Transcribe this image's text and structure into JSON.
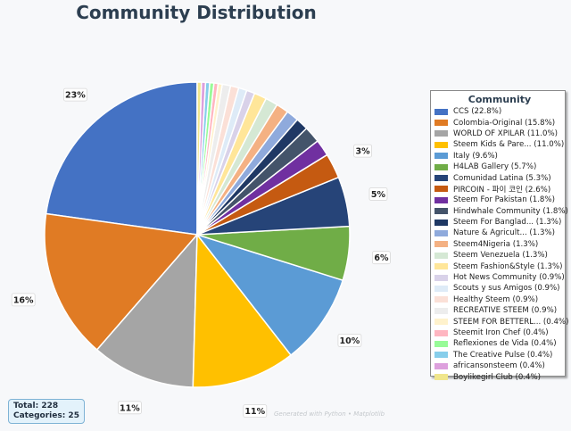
{
  "chart_data": {
    "type": "pie",
    "title": "Community Distribution",
    "legend_title": "Community",
    "legend_position": "right",
    "total_label": "Total: 228",
    "categories_label": "Categories: 25",
    "footer": "Generated with Python • Matplotlib",
    "slices": [
      {
        "label": "CCS (22.8%)",
        "value": 52,
        "pct_label": "23%",
        "color": "#4472c4"
      },
      {
        "label": "Colombia-Original (15.8%)",
        "value": 36,
        "pct_label": "16%",
        "color": "#e07b24"
      },
      {
        "label": "WORLD OF XPILAR (11.0%)",
        "value": 25,
        "pct_label": "11%",
        "color": "#a5a5a5"
      },
      {
        "label": "Steem Kids & Pare... (11.0%)",
        "value": 25,
        "pct_label": "11%",
        "color": "#ffc000"
      },
      {
        "label": "Italy (9.6%)",
        "value": 22,
        "pct_label": "10%",
        "color": "#5b9bd5"
      },
      {
        "label": "H4LAB Gallery (5.7%)",
        "value": 13,
        "pct_label": "6%",
        "color": "#70ad47"
      },
      {
        "label": "Comunidad Latina (5.3%)",
        "value": 12,
        "pct_label": "5%",
        "color": "#264478"
      },
      {
        "label": "PIRCOIN - 파이 코인 (2.6%)",
        "value": 6,
        "pct_label": "3%",
        "color": "#c55a11"
      },
      {
        "label": "Steem For Pakistan (1.8%)",
        "value": 4,
        "pct_label": "",
        "color": "#7030a0"
      },
      {
        "label": "Hindwhale Community (1.8%)",
        "value": 4,
        "pct_label": "",
        "color": "#44546a"
      },
      {
        "label": "Steem For Banglad... (1.3%)",
        "value": 3,
        "pct_label": "",
        "color": "#1f3864"
      },
      {
        "label": "Nature & Agricult... (1.3%)",
        "value": 3,
        "pct_label": "",
        "color": "#8faadc"
      },
      {
        "label": "Steem4Nigeria (1.3%)",
        "value": 3,
        "pct_label": "",
        "color": "#f4b183"
      },
      {
        "label": "Steem Venezuela (1.3%)",
        "value": 3,
        "pct_label": "",
        "color": "#d5e8d4"
      },
      {
        "label": "Steem Fashion&Style (1.3%)",
        "value": 3,
        "pct_label": "",
        "color": "#ffe699"
      },
      {
        "label": "Hot News Community (0.9%)",
        "value": 2,
        "pct_label": "",
        "color": "#d9d2e9"
      },
      {
        "label": "Scouts y sus Amigos (0.9%)",
        "value": 2,
        "pct_label": "",
        "color": "#deebf7"
      },
      {
        "label": "Healthy Steem (0.9%)",
        "value": 2,
        "pct_label": "",
        "color": "#fbe0d7"
      },
      {
        "label": "RECREATIVE STEEM (0.9%)",
        "value": 2,
        "pct_label": "",
        "color": "#ededed"
      },
      {
        "label": "STEEM FOR BETTERL... (0.4%)",
        "value": 1,
        "pct_label": "",
        "color": "#fff2cc"
      },
      {
        "label": "Steemit Iron Chef (0.4%)",
        "value": 1,
        "pct_label": "",
        "color": "#ffb6c1"
      },
      {
        "label": "Reflexiones de Vida (0.4%)",
        "value": 1,
        "pct_label": "",
        "color": "#98fb98"
      },
      {
        "label": "The Creative Pulse (0.4%)",
        "value": 1,
        "pct_label": "",
        "color": "#87ceeb"
      },
      {
        "label": "africansonsteem (0.4%)",
        "value": 1,
        "pct_label": "",
        "color": "#dda0dd"
      },
      {
        "label": "Boylikegirl Club (0.4%)",
        "value": 1,
        "pct_label": "",
        "color": "#f0e68c"
      }
    ]
  }
}
